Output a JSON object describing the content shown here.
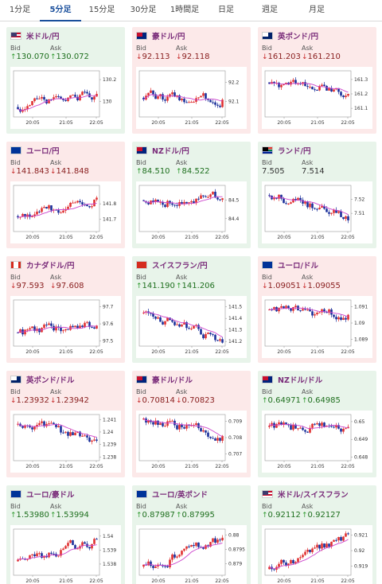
{
  "tabs": [
    {
      "label": "1分足",
      "active": false
    },
    {
      "label": "5分足",
      "active": true
    },
    {
      "label": "15分足",
      "active": false
    },
    {
      "label": "30分足",
      "active": false
    },
    {
      "label": "1時間足",
      "active": false
    },
    {
      "label": "日足",
      "active": false
    },
    {
      "label": "週足",
      "active": false
    },
    {
      "label": "月足",
      "active": false
    }
  ],
  "bid_label": "Bid",
  "ask_label": "Ask",
  "colors": {
    "up_card": "#e8f4ea",
    "down_card": "#fce9e9",
    "candle_up": "#e03030",
    "candle_down": "#1a2f9a",
    "ma_line": "#cc44cc",
    "up_arrow": "#2e9a2e",
    "down_arrow": "#c82a2a"
  },
  "cards": [
    {
      "pair": "米ドル/円",
      "flag": "us",
      "trend": "up",
      "bid": {
        "dir": "up",
        "value": "130.070"
      },
      "ask": {
        "dir": "up",
        "value": "130.072"
      },
      "chart": {
        "x_ticks": [
          "20:05",
          "21:05",
          "22:05"
        ],
        "y_ticks": [
          "130.2",
          "130"
        ],
        "y_range": [
          129.86,
          130.28
        ],
        "start": 129.95,
        "end": 130.07
      }
    },
    {
      "pair": "豪ドル/円",
      "flag": "au",
      "trend": "down",
      "bid": {
        "dir": "down",
        "value": "92.113"
      },
      "ask": {
        "dir": "down",
        "value": "92.118"
      },
      "chart": {
        "x_ticks": [
          "20:05",
          "21:05",
          "22:05"
        ],
        "y_ticks": [
          "92.2",
          "92.1"
        ],
        "y_range": [
          92.02,
          92.26
        ],
        "start": 92.12,
        "end": 92.11
      }
    },
    {
      "pair": "英ポンド/円",
      "flag": "gb",
      "trend": "down",
      "bid": {
        "dir": "down",
        "value": "161.203"
      },
      "ask": {
        "dir": "down",
        "value": "161.210"
      },
      "chart": {
        "x_ticks": [
          "20:05",
          "21:05",
          "22:05"
        ],
        "y_ticks": [
          "161.3",
          "161.2",
          "161.1"
        ],
        "y_range": [
          161.04,
          161.36
        ],
        "start": 161.28,
        "end": 161.2
      }
    },
    {
      "pair": "ユーロ/円",
      "flag": "eu",
      "trend": "down",
      "bid": {
        "dir": "down",
        "value": "141.843"
      },
      "ask": {
        "dir": "down",
        "value": "141.848"
      },
      "chart": {
        "x_ticks": [
          "20:05",
          "21:05",
          "22:05"
        ],
        "y_ticks": [
          "141.8",
          "141.7"
        ],
        "y_range": [
          141.62,
          141.92
        ],
        "start": 141.72,
        "end": 141.84
      }
    },
    {
      "pair": "NZドル/円",
      "flag": "nz",
      "trend": "up",
      "bid": {
        "dir": "up",
        "value": "84.510"
      },
      "ask": {
        "dir": "up",
        "value": "84.522"
      },
      "chart": {
        "x_ticks": [
          "20:05",
          "21:05",
          "22:05"
        ],
        "y_ticks": [
          "84.5",
          "84.4"
        ],
        "y_range": [
          84.33,
          84.58
        ],
        "start": 84.5,
        "end": 84.51
      }
    },
    {
      "pair": "ランド/円",
      "flag": "za",
      "trend": "up",
      "bid": {
        "dir": "neutral",
        "value": "7.505"
      },
      "ask": {
        "dir": "neutral",
        "value": "7.514"
      },
      "chart": {
        "x_ticks": [
          "20:05",
          "21:05",
          "22:05"
        ],
        "y_ticks": [
          "7.52",
          "7.51"
        ],
        "y_range": [
          7.497,
          7.53
        ],
        "start": 7.523,
        "end": 7.505
      }
    },
    {
      "pair": "カナダドル/円",
      "flag": "ca",
      "trend": "down",
      "bid": {
        "dir": "down",
        "value": "97.593"
      },
      "ask": {
        "dir": "down",
        "value": "97.608"
      },
      "chart": {
        "x_ticks": [
          "20:05",
          "21:05",
          "22:05"
        ],
        "y_ticks": [
          "97.7",
          "97.6",
          "97.5"
        ],
        "y_range": [
          97.47,
          97.74
        ],
        "start": 97.55,
        "end": 97.59
      }
    },
    {
      "pair": "スイスフラン/円",
      "flag": "ch",
      "trend": "up",
      "bid": {
        "dir": "up",
        "value": "141.190"
      },
      "ask": {
        "dir": "up",
        "value": "141.206"
      },
      "chart": {
        "x_ticks": [
          "20:05",
          "21:05",
          "22:05"
        ],
        "y_ticks": [
          "141.5",
          "141.4",
          "141.3",
          "141.2"
        ],
        "y_range": [
          141.16,
          141.56
        ],
        "start": 141.45,
        "end": 141.19
      }
    },
    {
      "pair": "ユーロ/ドル",
      "flag": "eu",
      "trend": "down",
      "bid": {
        "dir": "down",
        "value": "1.09051"
      },
      "ask": {
        "dir": "down",
        "value": "1.09055"
      },
      "chart": {
        "x_ticks": [
          "20:05",
          "21:05",
          "22:05"
        ],
        "y_ticks": [
          "1.091",
          "1.09",
          "1.089"
        ],
        "y_range": [
          1.0886,
          1.0914
        ],
        "start": 1.0908,
        "end": 1.0905
      }
    },
    {
      "pair": "英ポンド/ドル",
      "flag": "gb",
      "trend": "down",
      "bid": {
        "dir": "down",
        "value": "1.23932"
      },
      "ask": {
        "dir": "down",
        "value": "1.23942"
      },
      "chart": {
        "x_ticks": [
          "20:05",
          "21:05",
          "22:05"
        ],
        "y_ticks": [
          "1.241",
          "1.24",
          "1.239",
          "1.238"
        ],
        "y_range": [
          1.2377,
          1.2414
        ],
        "start": 1.2406,
        "end": 1.2393
      }
    },
    {
      "pair": "豪ドル/ドル",
      "flag": "au",
      "trend": "down",
      "bid": {
        "dir": "down",
        "value": "0.70814"
      },
      "ask": {
        "dir": "down",
        "value": "0.70823"
      },
      "chart": {
        "x_ticks": [
          "20:05",
          "21:05",
          "22:05"
        ],
        "y_ticks": [
          "0.709",
          "0.708",
          "0.707"
        ],
        "y_range": [
          0.7066,
          0.7094
        ],
        "start": 0.7091,
        "end": 0.7081
      }
    },
    {
      "pair": "NZドル/ドル",
      "flag": "nz",
      "trend": "up",
      "bid": {
        "dir": "up",
        "value": "0.64971"
      },
      "ask": {
        "dir": "up",
        "value": "0.64985"
      },
      "chart": {
        "x_ticks": [
          "20:05",
          "21:05",
          "22:05"
        ],
        "y_ticks": [
          "0.65",
          "0.649",
          "0.648"
        ],
        "y_range": [
          0.6478,
          0.6504
        ],
        "start": 0.6497,
        "end": 0.6497
      }
    },
    {
      "pair": "ユーロ/豪ドル",
      "flag": "eu",
      "trend": "up",
      "bid": {
        "dir": "up",
        "value": "1.53980"
      },
      "ask": {
        "dir": "up",
        "value": "1.53994"
      },
      "chart": {
        "x_ticks": [
          "20:05",
          "21:05",
          "22:05"
        ],
        "y_ticks": [
          "1.54",
          "1.539",
          "1.538"
        ],
        "y_range": [
          1.5372,
          1.5405
        ],
        "start": 1.5382,
        "end": 1.5398
      }
    },
    {
      "pair": "ユーロ/英ポンド",
      "flag": "eu",
      "trend": "up",
      "bid": {
        "dir": "up",
        "value": "0.87987"
      },
      "ask": {
        "dir": "up",
        "value": "0.87995"
      },
      "chart": {
        "x_ticks": [
          "20:05",
          "21:05",
          "22:05"
        ],
        "y_ticks": [
          "0.88",
          "0.8795",
          "0.879"
        ],
        "y_range": [
          0.8786,
          0.8802
        ],
        "start": 0.8789,
        "end": 0.8799
      }
    },
    {
      "pair": "米ドル/スイスフラン",
      "flag": "us",
      "trend": "up",
      "bid": {
        "dir": "up",
        "value": "0.92112"
      },
      "ask": {
        "dir": "up",
        "value": "0.92127"
      },
      "chart": {
        "x_ticks": [
          "20:05",
          "21:05",
          "22:05"
        ],
        "y_ticks": [
          "0.921",
          "0.92",
          "0.919"
        ],
        "y_range": [
          0.9184,
          0.9214
        ],
        "start": 0.9188,
        "end": 0.9211
      }
    }
  ]
}
